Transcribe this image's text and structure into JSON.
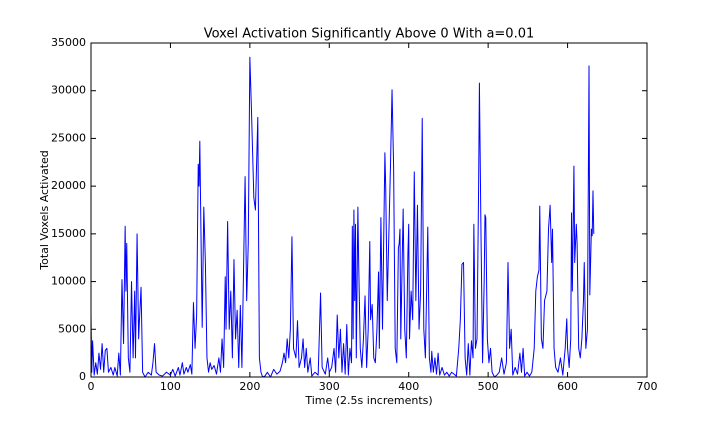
{
  "chart_data": {
    "type": "line",
    "title": "Voxel Activation Significantly Above 0 With a=0.01",
    "xlabel": "Time (2.5s increments)",
    "ylabel": "Total Voxels Activated",
    "color": "#0000ff",
    "xlim": [
      0,
      700
    ],
    "xticks": [
      0,
      100,
      200,
      300,
      400,
      500,
      600,
      700
    ],
    "ylim": [
      0,
      35000
    ],
    "yticks": [
      0,
      5000,
      10000,
      15000,
      20000,
      25000,
      30000,
      35000
    ],
    "grid": false,
    "x": [
      0,
      1,
      2,
      4,
      6,
      8,
      10,
      12,
      14,
      16,
      18,
      20,
      22,
      25,
      28,
      30,
      33,
      35,
      37,
      39,
      41,
      43,
      44,
      45,
      47,
      49,
      51,
      53,
      55,
      56,
      58,
      60,
      61,
      63,
      65,
      68,
      72,
      76,
      78,
      80,
      82,
      86,
      90,
      95,
      100,
      103,
      106,
      110,
      112,
      115,
      117,
      120,
      122,
      125,
      127,
      129,
      131,
      133,
      135,
      136,
      137,
      138,
      140,
      142,
      144,
      146,
      148,
      150,
      152,
      155,
      158,
      161,
      163,
      165,
      167,
      169,
      170,
      172,
      174,
      176,
      178,
      180,
      182,
      184,
      186,
      188,
      190,
      194,
      196,
      198,
      200,
      202,
      205,
      207,
      210,
      212,
      214,
      216,
      219,
      222,
      226,
      230,
      234,
      238,
      241,
      243,
      245,
      247,
      249,
      251,
      253,
      255,
      258,
      260,
      262,
      265,
      267,
      269,
      271,
      273,
      276,
      278,
      282,
      286,
      289,
      291,
      295,
      298,
      300,
      303,
      306,
      308,
      310,
      312,
      314,
      316,
      318,
      320,
      322,
      324,
      326,
      328,
      329,
      330,
      331,
      332,
      333,
      334,
      336,
      337,
      339,
      341,
      343,
      345,
      347,
      349,
      351,
      352,
      354,
      356,
      358,
      360,
      362,
      363,
      365,
      367,
      370,
      371,
      373,
      375,
      377,
      379,
      381,
      383,
      385,
      387,
      388,
      389,
      390,
      393,
      395,
      397,
      399,
      400,
      401,
      403,
      405,
      407,
      409,
      411,
      413,
      415,
      417,
      419,
      421,
      424,
      426,
      428,
      429,
      431,
      433,
      435,
      437,
      439,
      442,
      445,
      448,
      451,
      454,
      457,
      460,
      463,
      465,
      467,
      469,
      471,
      473,
      475,
      477,
      479,
      481,
      482,
      484,
      486,
      488,
      489,
      491,
      493,
      495,
      496,
      497,
      499,
      501,
      503,
      505,
      508,
      511,
      514,
      517,
      520,
      523,
      525,
      527,
      529,
      531,
      534,
      537,
      540,
      542,
      544,
      546,
      549,
      552,
      555,
      558,
      560,
      562,
      564,
      565,
      567,
      569,
      571,
      574,
      576,
      578,
      580,
      581,
      583,
      585,
      588,
      591,
      594,
      597,
      599,
      600,
      602,
      604,
      605,
      606,
      608,
      609,
      611,
      612,
      614,
      616,
      618,
      620,
      621,
      623,
      625,
      627,
      628,
      630,
      631,
      632,
      633
    ],
    "values": [
      6500,
      500,
      3800,
      200,
      1500,
      300,
      2500,
      800,
      3500,
      500,
      2800,
      3000,
      500,
      1000,
      200,
      1000,
      100,
      2500,
      200,
      10200,
      3500,
      15800,
      9000,
      14000,
      2000,
      500,
      10000,
      2000,
      9000,
      2000,
      15000,
      4000,
      6000,
      9400,
      500,
      0,
      500,
      200,
      1500,
      3500,
      500,
      200,
      100,
      500,
      200,
      800,
      100,
      1000,
      200,
      1500,
      300,
      1000,
      500,
      1300,
      300,
      7800,
      3000,
      6500,
      22300,
      20000,
      24700,
      18000,
      5200,
      17800,
      12000,
      2000,
      500,
      1500,
      800,
      1200,
      300,
      2000,
      500,
      4000,
      1000,
      10500,
      5000,
      16300,
      5000,
      9000,
      2000,
      12300,
      4000,
      7000,
      1000,
      7500,
      1000,
      21000,
      8000,
      14000,
      33500,
      28000,
      18800,
      17500,
      27200,
      2000,
      500,
      0,
      100,
      500,
      0,
      800,
      300,
      600,
      1500,
      2500,
      1500,
      4000,
      2000,
      5000,
      14700,
      3000,
      2000,
      5900,
      1000,
      2000,
      4000,
      1000,
      3000,
      500,
      2000,
      100,
      500,
      200,
      8800,
      1000,
      300,
      2000,
      500,
      1000,
      3000,
      500,
      6500,
      2000,
      5000,
      500,
      3500,
      300,
      5500,
      200,
      3000,
      1500,
      15800,
      4000,
      17500,
      8000,
      16000,
      2000,
      17800,
      12000,
      3000,
      1000,
      4000,
      8500,
      1000,
      5000,
      14200,
      6000,
      7600,
      2000,
      1500,
      5000,
      11000,
      3000,
      16700,
      5000,
      23500,
      20000,
      8000,
      15000,
      22000,
      30100,
      22000,
      3000,
      1500,
      13500,
      14000,
      15500,
      4000,
      17600,
      5000,
      2000,
      13000,
      16000,
      4000,
      9000,
      6000,
      21500,
      8000,
      18000,
      5000,
      9000,
      27100,
      5000,
      2000,
      15700,
      2000,
      500,
      2700,
      500,
      2000,
      300,
      2500,
      200,
      1000,
      200,
      500,
      100,
      500,
      300,
      100,
      3000,
      6000,
      11800,
      12000,
      2000,
      200,
      3500,
      200,
      3800,
      2000,
      16000,
      3000,
      4000,
      20000,
      30800,
      15000,
      1500,
      10000,
      17000,
      16700,
      4000,
      1500,
      3000,
      500,
      0,
      200,
      500,
      2000,
      300,
      1500,
      12000,
      3000,
      5000,
      200,
      1000,
      300,
      2500,
      500,
      3000,
      100,
      500,
      100,
      500,
      3000,
      9000,
      10500,
      11200,
      17900,
      4000,
      3000,
      8000,
      9000,
      15500,
      18000,
      12000,
      15500,
      3000,
      1000,
      500,
      2000,
      200,
      3000,
      6100,
      3000,
      1000,
      4000,
      17200,
      9000,
      22100,
      12000,
      16000,
      14000,
      3000,
      2000,
      4000,
      8000,
      12000,
      3000,
      5000,
      32600,
      8600,
      15500,
      14800,
      19500,
      15000
    ]
  }
}
